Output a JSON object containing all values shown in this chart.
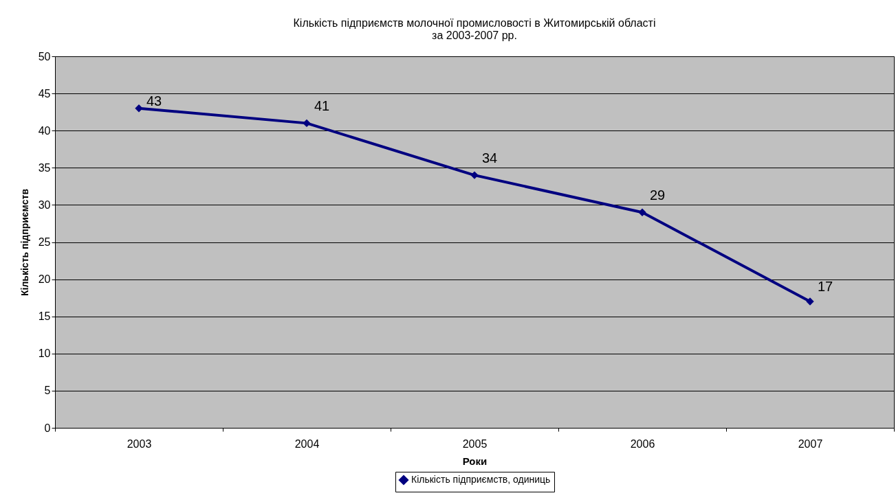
{
  "chart_data": {
    "type": "line",
    "title": "Кількість підприємств молочної промисловості в Житомирській області\nза 2003-2007 рр.",
    "xlabel": "Роки",
    "ylabel": "Кількість підприємств",
    "categories": [
      "2003",
      "2004",
      "2005",
      "2006",
      "2007"
    ],
    "series": [
      {
        "name": "Кількість підприємств, одиниць",
        "color": "#000080",
        "values": [
          43,
          41,
          34,
          29,
          17
        ]
      }
    ],
    "ylim": [
      0,
      50
    ],
    "yticks": [
      0,
      5,
      10,
      15,
      20,
      25,
      30,
      35,
      40,
      45,
      50
    ],
    "grid": "y",
    "legend": "bottom",
    "marker": "diamond",
    "line_style": "solid",
    "data_labels": true
  }
}
